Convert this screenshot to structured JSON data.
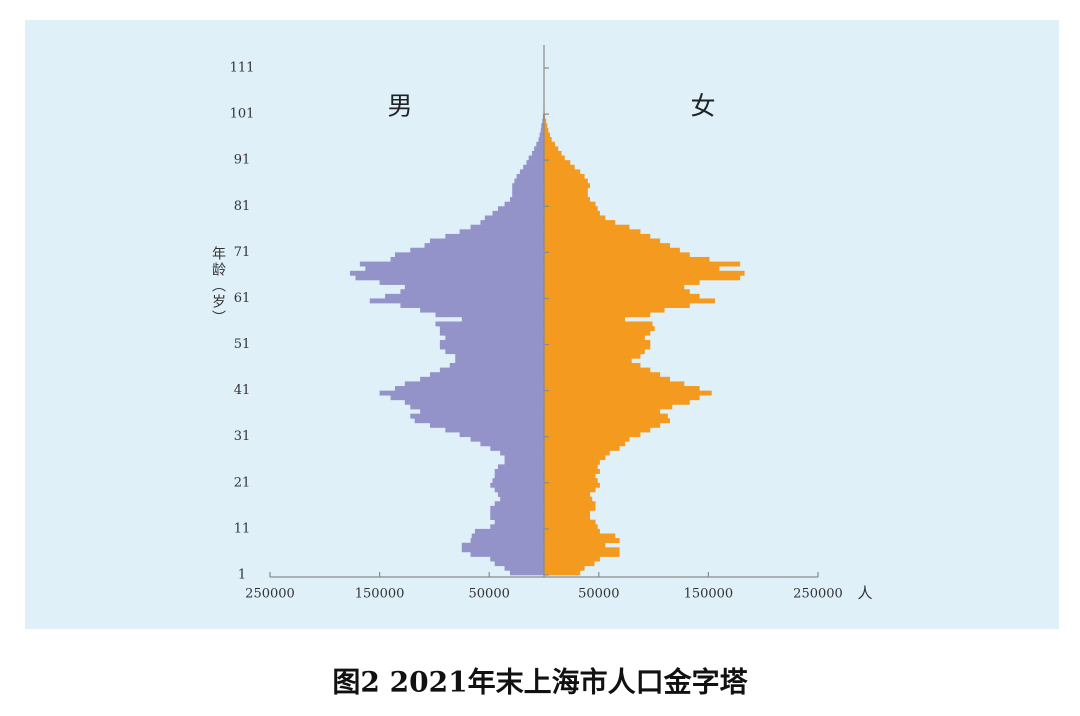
{
  "chart_data": {
    "type": "pyramid",
    "title": "图2  2021年末上海市人口金字塔",
    "y_label": "年龄（岁）",
    "x_label": "人",
    "categories": [
      1,
      2,
      3,
      4,
      5,
      6,
      7,
      8,
      9,
      10,
      11,
      12,
      13,
      14,
      15,
      16,
      17,
      18,
      19,
      20,
      21,
      22,
      23,
      24,
      25,
      26,
      27,
      28,
      29,
      30,
      31,
      32,
      33,
      34,
      35,
      36,
      37,
      38,
      39,
      40,
      41,
      42,
      43,
      44,
      45,
      46,
      47,
      48,
      49,
      50,
      51,
      52,
      53,
      54,
      55,
      56,
      57,
      58,
      59,
      60,
      61,
      62,
      63,
      64,
      65,
      66,
      67,
      68,
      69,
      70,
      71,
      72,
      73,
      74,
      75,
      76,
      77,
      78,
      79,
      80,
      81,
      82,
      83,
      84,
      85,
      86,
      87,
      88,
      89,
      90,
      91,
      92,
      93,
      94,
      95,
      96,
      97,
      98,
      99,
      100,
      101
    ],
    "series": [
      {
        "name": "男",
        "side": "left",
        "color": "#9393c9",
        "values": [
          31000,
          36000,
          45000,
          49000,
          67000,
          75000,
          75000,
          67000,
          66000,
          63000,
          49000,
          45000,
          49000,
          49000,
          49000,
          45000,
          40000,
          42000,
          45000,
          49000,
          47000,
          45000,
          45000,
          42000,
          36000,
          36000,
          40000,
          49000,
          58000,
          67000,
          77000,
          90000,
          104000,
          118000,
          122000,
          113000,
          122000,
          127000,
          140000,
          150000,
          136000,
          127000,
          113000,
          104000,
          95000,
          86000,
          81000,
          81000,
          90000,
          95000,
          95000,
          90000,
          95000,
          95000,
          99000,
          75000,
          99000,
          113000,
          131000,
          159000,
          145000,
          131000,
          127000,
          150000,
          172000,
          177000,
          163000,
          168000,
          140000,
          136000,
          122000,
          109000,
          104000,
          90000,
          77000,
          67000,
          58000,
          54000,
          47000,
          42000,
          36000,
          31000,
          29000,
          29000,
          29000,
          27000,
          25000,
          22000,
          19000,
          16000,
          14000,
          11000,
          9000,
          7000,
          5000,
          4000,
          3000,
          2500,
          1500,
          1000,
          500
        ]
      },
      {
        "name": "女",
        "side": "right",
        "color": "#f39a1f",
        "values": [
          33000,
          37000,
          46000,
          51000,
          69000,
          69000,
          56000,
          69000,
          65000,
          51000,
          49000,
          47000,
          42000,
          42000,
          47000,
          47000,
          44000,
          42000,
          47000,
          51000,
          49000,
          47000,
          51000,
          49000,
          51000,
          56000,
          60000,
          69000,
          74000,
          78000,
          88000,
          97000,
          106000,
          115000,
          113000,
          106000,
          117000,
          133000,
          142000,
          153000,
          142000,
          128000,
          115000,
          106000,
          97000,
          88000,
          80000,
          88000,
          92000,
          97000,
          97000,
          92000,
          97000,
          101000,
          99000,
          74000,
          97000,
          110000,
          133000,
          156000,
          142000,
          133000,
          128000,
          142000,
          179000,
          183000,
          160000,
          179000,
          151000,
          133000,
          124000,
          115000,
          106000,
          97000,
          88000,
          78000,
          65000,
          56000,
          51000,
          49000,
          47000,
          42000,
          40000,
          40000,
          42000,
          40000,
          37000,
          33000,
          28000,
          24000,
          19000,
          16000,
          13000,
          10000,
          7000,
          5500,
          4000,
          3000,
          2000,
          1000,
          500
        ]
      }
    ],
    "xlim": [
      -250000,
      250000
    ],
    "xticks": [
      {
        "value": -250000,
        "label": "250000"
      },
      {
        "value": -150000,
        "label": "150000"
      },
      {
        "value": -50000,
        "label": "50000"
      },
      50000,
      150000,
      250000
    ],
    "ylim": [
      1,
      111
    ],
    "yticks": [
      1,
      11,
      21,
      31,
      41,
      51,
      61,
      71,
      81,
      91,
      101,
      111
    ],
    "background": "#dff0f9"
  }
}
